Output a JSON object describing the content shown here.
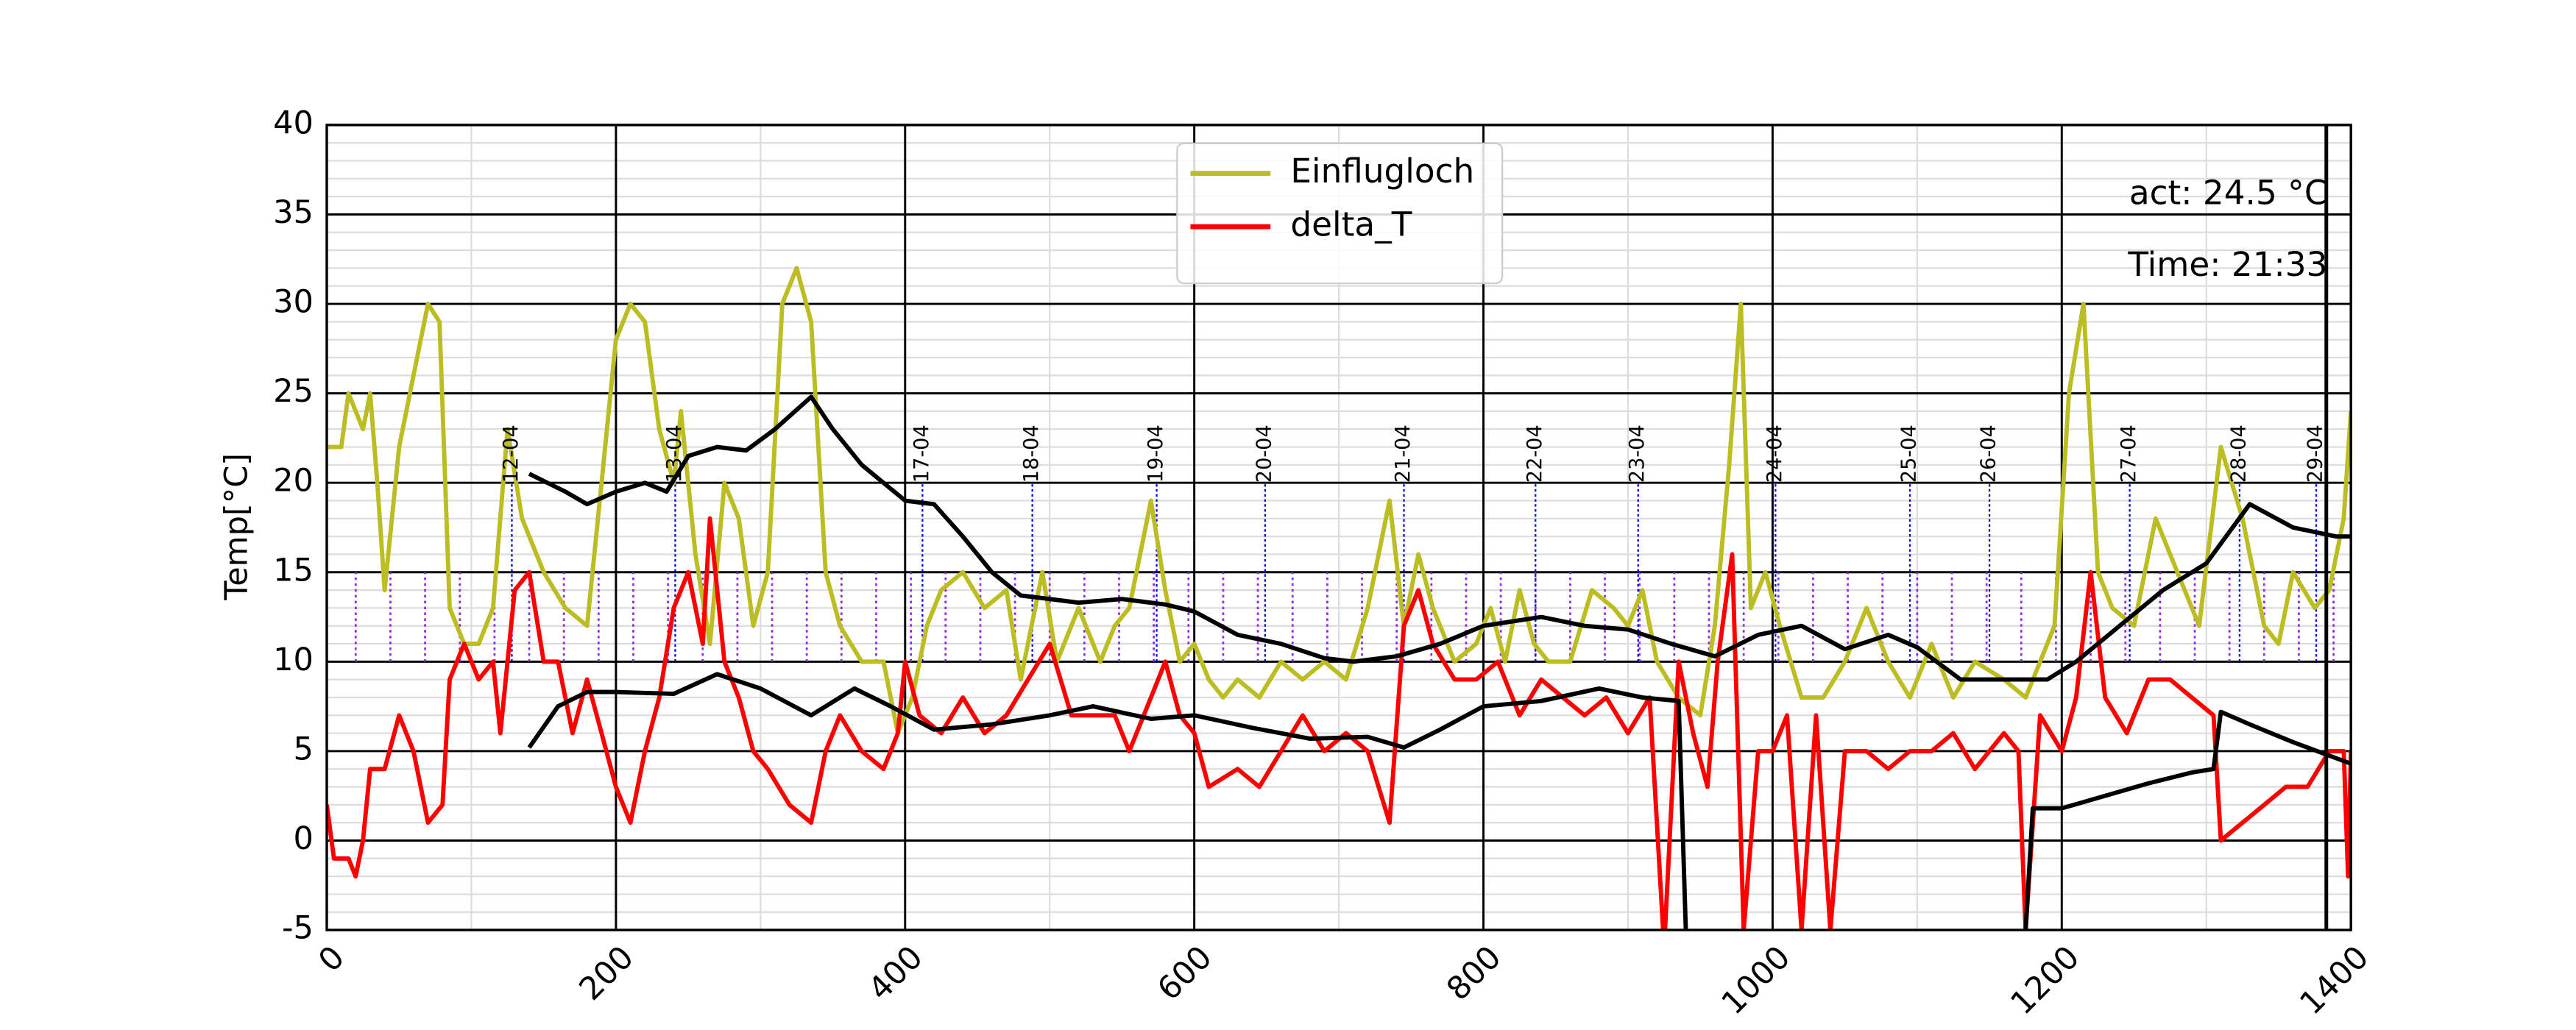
{
  "chart_data": {
    "type": "line",
    "ylabel": "Temp[°C]",
    "xlim": [
      0,
      1400
    ],
    "ylim": [
      -5,
      40
    ],
    "xticks": [
      0,
      200,
      400,
      600,
      800,
      1000,
      1200,
      1400
    ],
    "yticks": [
      -5,
      0,
      5,
      10,
      15,
      20,
      25,
      30,
      35,
      40
    ],
    "xminor": [
      100,
      300,
      500,
      700,
      900,
      1100,
      1300
    ],
    "yminor": [
      -4,
      -3,
      -2,
      -1,
      1,
      2,
      3,
      4,
      6,
      7,
      8,
      9,
      11,
      12,
      13,
      14,
      16,
      17,
      18,
      19,
      21,
      22,
      23,
      24,
      26,
      27,
      28,
      29,
      31,
      32,
      33,
      34,
      36,
      37,
      38,
      39
    ],
    "grid": true,
    "legend": "upper center",
    "texts": [
      "act: 24.5 °C",
      "Time: 21:33"
    ],
    "current_x": 1383,
    "annotation_color": "#0000ff",
    "annotation_span": [
      10,
      20
    ],
    "annotations": [
      {
        "x": 128,
        "label": "12-04"
      },
      {
        "x": 241,
        "label": "13-04"
      },
      {
        "x": 412,
        "label": "17-04"
      },
      {
        "x": 488,
        "label": "18-04"
      },
      {
        "x": 574,
        "label": "19-04"
      },
      {
        "x": 649,
        "label": "20-04"
      },
      {
        "x": 745,
        "label": "21-04"
      },
      {
        "x": 836,
        "label": "22-04"
      },
      {
        "x": 907,
        "label": "23-04"
      },
      {
        "x": 1002,
        "label": "24-04"
      },
      {
        "x": 1095,
        "label": "25-04"
      },
      {
        "x": 1150,
        "label": "26-04"
      },
      {
        "x": 1247,
        "label": "27-04"
      },
      {
        "x": 1323,
        "label": "28-04"
      },
      {
        "x": 1376,
        "label": "29-04"
      }
    ],
    "marks_color": "#8a2be2",
    "marks_span": [
      10,
      15
    ],
    "marks_x": [
      20,
      44,
      68,
      92,
      116,
      140,
      164,
      188,
      212,
      236,
      260,
      284,
      308,
      332,
      356,
      380,
      404,
      428,
      452,
      476,
      500,
      524,
      548,
      572,
      596,
      620,
      644,
      668,
      692,
      716,
      740,
      764,
      788,
      812,
      836,
      860,
      884,
      908,
      932,
      956,
      980,
      1004,
      1028,
      1052,
      1076,
      1100,
      1124,
      1148,
      1172,
      1196,
      1220,
      1244,
      1268,
      1292,
      1316,
      1340,
      1364,
      1388
    ],
    "series": [
      {
        "name": "Einflugloch",
        "color": "#bcbd22",
        "x": [
          0,
          10,
          15,
          25,
          30,
          35,
          40,
          50,
          60,
          70,
          78,
          85,
          95,
          105,
          115,
          125,
          135,
          150,
          165,
          180,
          190,
          200,
          210,
          220,
          230,
          240,
          245,
          255,
          265,
          275,
          285,
          295,
          305,
          315,
          325,
          335,
          345,
          355,
          370,
          385,
          395,
          405,
          415,
          425,
          440,
          455,
          470,
          480,
          495,
          505,
          520,
          535,
          545,
          555,
          570,
          580,
          590,
          600,
          610,
          620,
          630,
          645,
          660,
          675,
          690,
          705,
          720,
          735,
          745,
          755,
          765,
          780,
          795,
          805,
          815,
          825,
          835,
          845,
          860,
          875,
          890,
          900,
          910,
          920,
          935,
          950,
          960,
          970,
          978,
          985,
          995,
          1005,
          1020,
          1035,
          1050,
          1065,
          1080,
          1095,
          1110,
          1125,
          1140,
          1160,
          1175,
          1185,
          1195,
          1205,
          1215,
          1225,
          1235,
          1250,
          1265,
          1280,
          1295,
          1310,
          1325,
          1340,
          1350,
          1360,
          1375,
          1385,
          1395,
          1400
        ],
        "values": [
          22,
          22,
          25,
          23,
          25,
          20,
          14,
          22,
          26,
          30,
          29,
          13,
          11,
          11,
          13,
          23,
          18,
          15,
          13,
          12,
          20,
          28,
          30,
          29,
          23,
          20,
          24,
          16,
          11,
          20,
          18,
          12,
          15,
          30,
          32,
          29,
          15,
          12,
          10,
          10,
          6,
          8,
          12,
          14,
          15,
          13,
          14,
          9,
          15,
          10,
          13,
          10,
          12,
          13,
          19,
          14,
          10,
          11,
          9,
          8,
          9,
          8,
          10,
          9,
          10,
          9,
          13,
          19,
          12,
          16,
          13,
          10,
          11,
          13,
          10,
          14,
          11,
          10,
          10,
          14,
          13,
          12,
          14,
          10,
          8,
          7,
          12,
          21,
          30,
          13,
          15,
          12,
          8,
          8,
          10,
          13,
          10,
          8,
          11,
          8,
          10,
          9,
          8,
          10,
          12,
          25,
          30,
          15,
          13,
          12,
          18,
          15,
          12,
          22,
          18,
          12,
          11,
          15,
          13,
          14,
          18,
          24
        ]
      },
      {
        "name": "delta_T",
        "color": "#ff0000",
        "x": [
          0,
          5,
          15,
          20,
          25,
          30,
          40,
          50,
          60,
          70,
          80,
          85,
          95,
          105,
          115,
          120,
          130,
          140,
          150,
          160,
          170,
          180,
          190,
          200,
          210,
          220,
          230,
          240,
          250,
          260,
          265,
          275,
          285,
          295,
          305,
          320,
          335,
          345,
          355,
          370,
          385,
          395,
          400,
          410,
          425,
          440,
          455,
          470,
          485,
          500,
          515,
          530,
          545,
          555,
          570,
          580,
          590,
          600,
          610,
          630,
          645,
          660,
          675,
          690,
          705,
          720,
          735,
          745,
          755,
          765,
          780,
          795,
          810,
          825,
          840,
          855,
          870,
          885,
          900,
          915,
          925,
          935,
          945,
          955,
          962,
          972,
          980,
          990,
          1000,
          1010,
          1020,
          1030,
          1040,
          1050,
          1065,
          1080,
          1095,
          1110,
          1125,
          1140,
          1160,
          1170,
          1175,
          1185,
          1200,
          1210,
          1220,
          1230,
          1245,
          1260,
          1275,
          1290,
          1305,
          1310,
          1325,
          1340,
          1355,
          1370,
          1385,
          1395,
          1398,
          1400
        ],
        "values": [
          2,
          -1,
          -1,
          -2,
          0,
          4,
          4,
          7,
          5,
          1,
          2,
          9,
          11,
          9,
          10,
          6,
          14,
          15,
          10,
          10,
          6,
          9,
          6,
          3,
          1,
          5,
          8,
          13,
          15,
          11,
          18,
          10,
          8,
          5,
          4,
          2,
          1,
          5,
          7,
          5,
          4,
          6,
          10,
          7,
          6,
          8,
          6,
          7,
          9,
          11,
          7,
          7,
          7,
          5,
          8,
          10,
          7,
          6,
          3,
          4,
          3,
          5,
          7,
          5,
          6,
          5,
          1,
          12,
          14,
          11,
          9,
          9,
          10,
          7,
          9,
          8,
          7,
          8,
          6,
          8,
          -6,
          10,
          6,
          3,
          10,
          16,
          -5,
          5,
          5,
          7,
          -5,
          7,
          -5,
          5,
          5,
          4,
          5,
          5,
          6,
          4,
          6,
          5,
          -5,
          7,
          5,
          8,
          15,
          8,
          6,
          9,
          9,
          8,
          7,
          0,
          1,
          2,
          3,
          3,
          5,
          5,
          -2,
          5
        ]
      },
      {
        "color": "#000000",
        "x": [
          140,
          165,
          180,
          200,
          220,
          235,
          250,
          270,
          290,
          310,
          335,
          350,
          370,
          400,
          420,
          440,
          460,
          480,
          500,
          520,
          550,
          580,
          600,
          630,
          660,
          690,
          710,
          740,
          770,
          800,
          840,
          870,
          900,
          930,
          960,
          990,
          1020,
          1050,
          1080,
          1100,
          1130,
          1160,
          1190,
          1210,
          1240,
          1270,
          1300,
          1330,
          1360,
          1390,
          1400
        ],
        "values": [
          20.5,
          19.5,
          18.8,
          19.5,
          20,
          19.5,
          21.5,
          22,
          21.8,
          23,
          24.8,
          23,
          21,
          19,
          18.8,
          17,
          15,
          13.7,
          13.5,
          13.3,
          13.5,
          13.2,
          12.8,
          11.5,
          11,
          10.2,
          10,
          10.3,
          11,
          12,
          12.5,
          12,
          11.8,
          11,
          10.3,
          11.5,
          12,
          10.7,
          11.5,
          10.8,
          9,
          9,
          9,
          10,
          12,
          14,
          15.5,
          18.8,
          17.5,
          17,
          17
        ]
      },
      {
        "color": "#000000",
        "x": [
          140,
          160,
          180,
          200,
          240,
          270,
          300,
          335,
          365,
          390,
          420,
          460,
          500,
          530,
          570,
          600,
          640,
          680,
          720,
          745,
          770,
          800,
          840,
          880,
          910,
          935,
          940,
          1000,
          1175,
          1180,
          1200,
          1230,
          1260,
          1290,
          1305,
          1310,
          1330,
          1360,
          1400
        ],
        "values": [
          5.2,
          7.5,
          8.3,
          8.3,
          8.2,
          9.3,
          8.5,
          7,
          8.5,
          7.5,
          6.2,
          6.5,
          7,
          7.5,
          6.8,
          7,
          6.3,
          5.7,
          5.8,
          5.2,
          6.2,
          7.5,
          7.8,
          8.5,
          8,
          7.8,
          -5,
          null,
          -5,
          1.8,
          1.8,
          2.5,
          3.2,
          3.8,
          4,
          7.2,
          6.5,
          5.5,
          4.3
        ]
      }
    ]
  }
}
